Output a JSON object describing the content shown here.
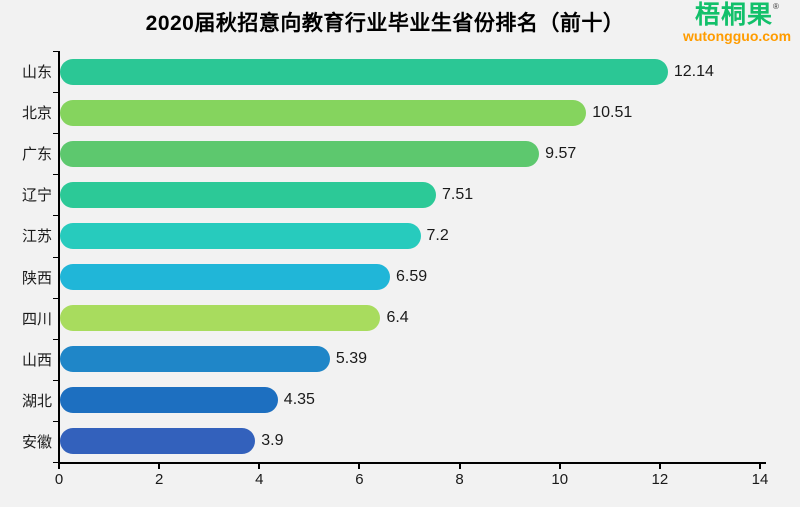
{
  "title": "2020届秋招意向教育行业毕业生省份排名（前十）",
  "logo": {
    "name": "梧桐果",
    "reg_mark": "®",
    "site": "wutongguo.com",
    "name_color": "#12C06A",
    "site_color": "#FF9C00"
  },
  "colors": {
    "background": "#F2F2F2",
    "axis": "#000000",
    "text": "#1A1A1A"
  },
  "chart_data": {
    "type": "bar",
    "orientation": "horizontal",
    "title": "2020届秋招意向教育行业毕业生省份排名（前十）",
    "xlabel": "",
    "ylabel": "",
    "categories": [
      "山东",
      "北京",
      "广东",
      "辽宁",
      "江苏",
      "陕西",
      "四川",
      "山西",
      "湖北",
      "安徽"
    ],
    "values": [
      12.14,
      10.51,
      9.57,
      7.51,
      7.2,
      6.59,
      6.4,
      5.39,
      4.35,
      3.9
    ],
    "value_labels": [
      "12.14",
      "10.51",
      "9.57",
      "7.51",
      "7.2",
      "6.59",
      "6.4",
      "5.39",
      "4.35",
      "3.9"
    ],
    "bar_colors": [
      "#2BC795",
      "#85D45E",
      "#5DC86E",
      "#2CC997",
      "#27CBBD",
      "#20B6D8",
      "#A8DC5E",
      "#1F86C8",
      "#1D6FC0",
      "#3361BC"
    ],
    "xlim": [
      0,
      14
    ],
    "x_ticks": [
      0,
      2,
      4,
      6,
      8,
      10,
      12,
      14
    ],
    "grid": false,
    "legend": false
  }
}
